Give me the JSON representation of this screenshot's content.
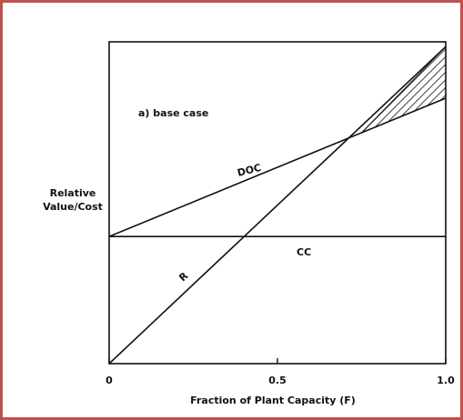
{
  "chart_data": {
    "type": "line",
    "panel_label": "a) base case",
    "xlabel": "Fraction of Plant Capacity (F)",
    "ylabel_lines": [
      "Relative",
      "Value/Cost"
    ],
    "xlim": [
      0,
      1
    ],
    "ylim": [
      0,
      1
    ],
    "x_ticks": [
      {
        "value": 0,
        "label": "0"
      },
      {
        "value": 0.5,
        "label": "0.5"
      },
      {
        "value": 1,
        "label": "1.0"
      }
    ],
    "series": [
      {
        "name": "DOC",
        "x": [
          0,
          1
        ],
        "y": [
          0.395,
          0.825
        ]
      },
      {
        "name": "CC",
        "x": [
          0,
          1
        ],
        "y": [
          0.395,
          0.395
        ]
      },
      {
        "name": "R",
        "x": [
          0,
          1
        ],
        "y": [
          0.0,
          0.985
        ]
      }
    ],
    "shaded_region": {
      "between": [
        "R",
        "DOC"
      ],
      "x_range": [
        0.75,
        1.0
      ],
      "pattern": "diagonal hatch"
    },
    "colors": {
      "line": "#111111",
      "frame": "#c0504d",
      "background": "#ffffff"
    }
  }
}
